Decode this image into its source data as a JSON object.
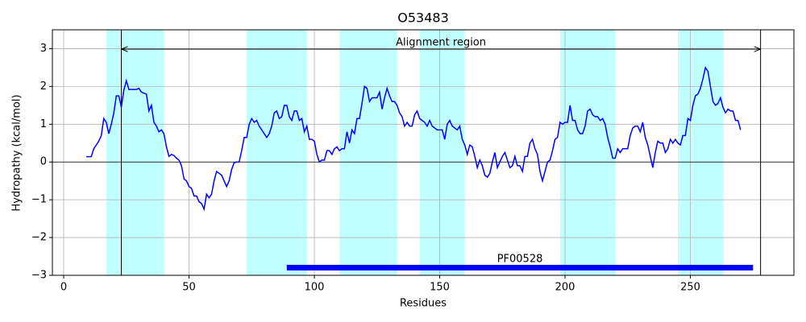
{
  "chart_data": {
    "type": "line",
    "title": "O53483",
    "x_label": "Residues",
    "y_label": "Hydropathy (kcal/mol)",
    "xlim": [
      -4.5,
      291.3
    ],
    "ylim": [
      -3,
      3.5
    ],
    "xticks": [
      0,
      50,
      100,
      150,
      200,
      250
    ],
    "yticks": [
      {
        "value": -3,
        "label": "−3"
      },
      {
        "value": -2,
        "label": "−2"
      },
      {
        "value": -1,
        "label": "−1"
      },
      0,
      1,
      2,
      3
    ],
    "grid": true,
    "regions": [
      [
        17,
        40
      ],
      [
        73,
        97
      ],
      [
        110,
        133
      ],
      [
        142,
        160
      ],
      [
        198,
        220
      ],
      [
        245,
        263
      ]
    ],
    "region_color": "#c0ffff",
    "alignment_region": {
      "label": "Alignment region",
      "start": 23,
      "end": 278
    },
    "domain": {
      "label": "PF00528",
      "start": 89,
      "end": 275,
      "color": "#0000ff"
    },
    "series": [
      {
        "color": "#0000ff",
        "x": [
          9,
          10,
          11,
          12,
          13,
          14,
          15,
          16,
          17,
          18,
          19,
          20,
          21,
          22,
          23,
          24,
          25,
          26,
          27,
          28,
          29,
          30,
          31,
          32,
          33,
          34,
          35,
          36,
          37,
          38,
          39,
          40,
          41,
          42,
          43,
          44,
          45,
          46,
          47,
          48,
          49,
          50,
          51,
          52,
          53,
          54,
          55,
          56,
          57,
          58,
          59,
          60,
          61,
          62,
          63,
          64,
          65,
          66,
          67,
          68,
          69,
          70,
          71,
          72,
          73,
          74,
          75,
          76,
          77,
          78,
          79,
          80,
          81,
          82,
          83,
          84,
          85,
          86,
          87,
          88,
          89,
          90,
          91,
          92,
          93,
          94,
          95,
          96,
          97,
          98,
          99,
          100,
          101,
          102,
          103,
          104,
          105,
          106,
          107,
          108,
          109,
          110,
          111,
          112,
          113,
          114,
          115,
          116,
          117,
          118,
          119,
          120,
          121,
          122,
          123,
          124,
          125,
          126,
          127,
          128,
          129,
          130,
          131,
          132,
          133,
          134,
          135,
          136,
          137,
          138,
          139,
          140,
          141,
          142,
          143,
          144,
          145,
          146,
          147,
          148,
          149,
          150,
          151,
          152,
          153,
          154,
          155,
          156,
          157,
          158,
          159,
          160,
          161,
          162,
          163,
          164,
          165,
          166,
          167,
          168,
          169,
          170,
          171,
          172,
          173,
          174,
          175,
          176,
          177,
          178,
          179,
          180,
          181,
          182,
          183,
          184,
          185,
          186,
          187,
          188,
          189,
          190,
          191,
          192,
          193,
          194,
          195,
          196,
          197,
          198,
          199,
          200,
          201,
          202,
          203,
          204,
          205,
          206,
          207,
          208,
          209,
          210,
          211,
          212,
          213,
          214,
          215,
          216,
          217,
          218,
          219,
          220,
          221,
          222,
          223,
          224,
          225,
          226,
          227,
          228,
          229,
          230,
          231,
          232,
          233,
          234,
          235,
          236,
          237,
          238,
          239,
          240,
          241,
          242,
          243,
          244,
          245,
          246,
          247,
          248,
          249,
          250,
          251,
          252,
          253,
          254,
          255,
          256,
          257,
          258,
          259,
          260,
          261,
          262,
          263,
          264,
          265,
          266,
          267,
          268,
          269,
          270
        ],
        "values": [
          0.14,
          0.14,
          0.14,
          0.35,
          0.45,
          0.55,
          0.7,
          1.15,
          1.05,
          0.75,
          1.0,
          1.3,
          1.75,
          1.75,
          1.45,
          1.9,
          2.15,
          1.92,
          1.92,
          1.92,
          1.92,
          1.95,
          1.85,
          1.82,
          1.8,
          1.35,
          1.5,
          1.05,
          0.95,
          0.8,
          0.85,
          0.75,
          0.4,
          0.15,
          0.2,
          0.17,
          0.1,
          0.05,
          -0.1,
          -0.45,
          -0.5,
          -0.65,
          -0.7,
          -0.9,
          -0.9,
          -1.05,
          -1.1,
          -1.25,
          -0.85,
          -0.95,
          -0.85,
          -0.5,
          -0.25,
          -0.3,
          -0.35,
          -0.5,
          -0.65,
          -0.5,
          -0.2,
          -0.02,
          0.0,
          0.0,
          0.3,
          0.65,
          0.65,
          1.0,
          1.15,
          1.05,
          1.1,
          0.95,
          0.85,
          0.75,
          0.65,
          0.75,
          0.95,
          1.3,
          1.35,
          1.15,
          1.2,
          1.5,
          1.5,
          1.2,
          1.1,
          1.35,
          1.35,
          1.1,
          1.15,
          0.8,
          0.95,
          0.6,
          0.6,
          0.55,
          0.2,
          0.0,
          0.05,
          0.05,
          0.3,
          0.3,
          0.2,
          0.35,
          0.4,
          0.3,
          0.35,
          0.35,
          0.8,
          0.5,
          0.85,
          0.75,
          1.15,
          1.15,
          1.55,
          2.0,
          1.95,
          1.6,
          1.7,
          1.7,
          1.7,
          1.85,
          1.4,
          1.7,
          1.95,
          1.75,
          1.6,
          1.6,
          1.5,
          1.3,
          1.2,
          0.95,
          1.05,
          0.95,
          0.95,
          1.25,
          1.35,
          1.15,
          1.1,
          1.05,
          0.95,
          1.1,
          0.95,
          0.9,
          0.85,
          0.85,
          0.85,
          0.6,
          1.0,
          1.1,
          0.95,
          0.9,
          0.85,
          0.95,
          0.6,
          0.45,
          0.2,
          0.45,
          0.4,
          0.15,
          -0.15,
          0.05,
          -0.1,
          -0.35,
          -0.4,
          -0.3,
          0.0,
          0.25,
          -0.15,
          0.0,
          0.15,
          0.25,
          0.05,
          -0.15,
          -0.1,
          0.15,
          -0.1,
          -0.1,
          -0.25,
          0.15,
          0.15,
          0.5,
          0.6,
          0.35,
          0.2,
          -0.25,
          -0.5,
          -0.25,
          0.0,
          0.05,
          0.3,
          0.6,
          0.65,
          1.05,
          1.0,
          1.05,
          1.05,
          1.5,
          1.1,
          1.1,
          0.85,
          0.75,
          0.75,
          0.95,
          1.35,
          1.4,
          1.25,
          1.2,
          1.2,
          1.1,
          1.15,
          1.0,
          0.65,
          0.4,
          0.1,
          0.1,
          0.35,
          0.25,
          0.35,
          0.35,
          0.35,
          0.7,
          0.9,
          0.95,
          0.95,
          0.8,
          1.05,
          0.65,
          0.45,
          0.15,
          -0.15,
          0.25,
          0.55,
          0.5,
          0.5,
          0.25,
          0.35,
          0.6,
          0.5,
          0.6,
          0.5,
          0.45,
          0.7,
          0.7,
          1.15,
          1.1,
          1.5,
          1.75,
          1.8,
          1.95,
          2.2,
          2.5,
          2.4,
          2.0,
          1.6,
          1.5,
          1.55,
          1.7,
          1.45,
          1.3,
          1.4,
          1.35,
          1.35,
          1.1,
          1.1,
          0.85
        ]
      }
    ]
  }
}
